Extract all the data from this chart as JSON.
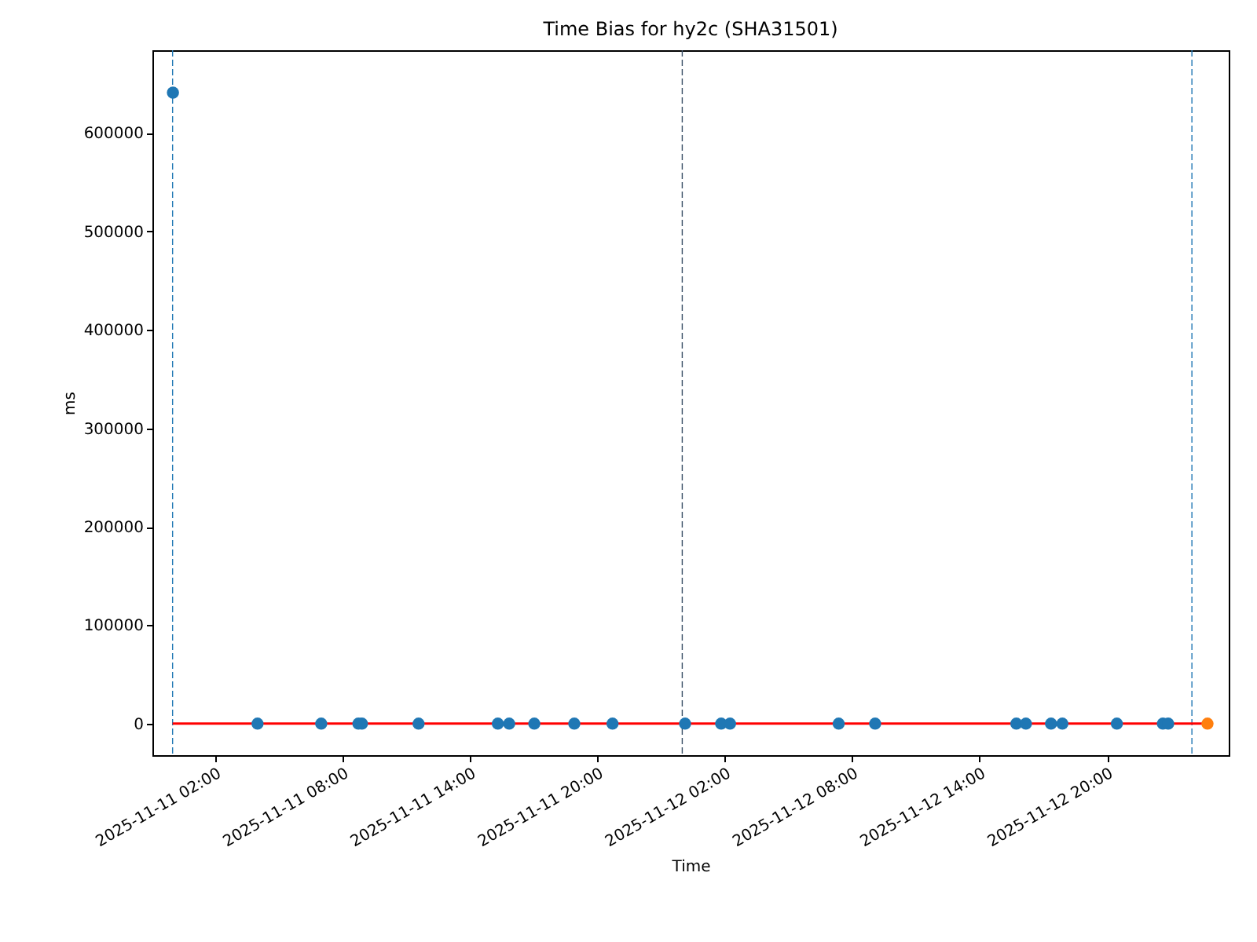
{
  "chart_data": {
    "type": "scatter",
    "title": "Time Bias for hy2c (SHA31501)",
    "xlabel": "Time",
    "ylabel": "ms",
    "grid": false,
    "marker": "circle",
    "xlim": [
      "2025-11-10T23:03",
      "2025-11-13T01:44"
    ],
    "ylim": [
      -32000,
      684000
    ],
    "yticks": [
      0,
      100000,
      200000,
      300000,
      400000,
      500000,
      600000
    ],
    "xticks": [
      {
        "value": "2025-11-11T02:00",
        "label": "2025-11-11 02:00"
      },
      {
        "value": "2025-11-11T08:00",
        "label": "2025-11-11 08:00"
      },
      {
        "value": "2025-11-11T14:00",
        "label": "2025-11-11 14:00"
      },
      {
        "value": "2025-11-11T20:00",
        "label": "2025-11-11 20:00"
      },
      {
        "value": "2025-11-12T02:00",
        "label": "2025-11-12 02:00"
      },
      {
        "value": "2025-11-12T08:00",
        "label": "2025-11-12 08:00"
      },
      {
        "value": "2025-11-12T14:00",
        "label": "2025-11-12 14:00"
      },
      {
        "value": "2025-11-12T20:00",
        "label": "2025-11-12 20:00"
      }
    ],
    "ref_lines": [
      {
        "axis": "x",
        "value": "2025-11-11T00:00",
        "color": "#1f77b4",
        "line_style": "dashed"
      },
      {
        "axis": "x",
        "value": "2025-11-12T00:00",
        "color": "#3a4f66",
        "line_style": "dashed"
      },
      {
        "axis": "x",
        "value": "2025-11-13T00:00",
        "color": "#1f77b4",
        "line_style": "dashed"
      }
    ],
    "series": [
      {
        "type": "line",
        "color": "#ff0000",
        "marker": "none",
        "x": [
          "2025-11-11T00:00",
          "2025-11-13T00:44"
        ],
        "values": [
          0,
          0
        ]
      },
      {
        "color": "#1f77b4",
        "x": [
          "2025-11-11T00:01",
          "2025-11-11T04:00",
          "2025-11-11T07:00",
          "2025-11-11T08:45",
          "2025-11-11T08:55",
          "2025-11-11T11:35",
          "2025-11-11T15:19",
          "2025-11-11T15:51",
          "2025-11-11T17:02",
          "2025-11-11T18:55",
          "2025-11-11T20:43",
          "2025-11-12T00:08",
          "2025-11-12T01:50",
          "2025-11-12T02:15",
          "2025-11-12T07:22",
          "2025-11-12T09:05",
          "2025-11-12T15:44",
          "2025-11-12T16:11",
          "2025-11-12T17:22",
          "2025-11-12T17:54",
          "2025-11-12T20:28",
          "2025-11-12T22:38",
          "2025-11-12T22:53"
        ],
        "values": [
          641000,
          0,
          0,
          0,
          0,
          0,
          0,
          0,
          0,
          0,
          0,
          0,
          0,
          0,
          0,
          0,
          0,
          0,
          0,
          0,
          0,
          0,
          0
        ]
      },
      {
        "color": "#ff7f0e",
        "x": [
          "2025-11-13T00:44"
        ],
        "values": [
          0
        ]
      }
    ]
  }
}
